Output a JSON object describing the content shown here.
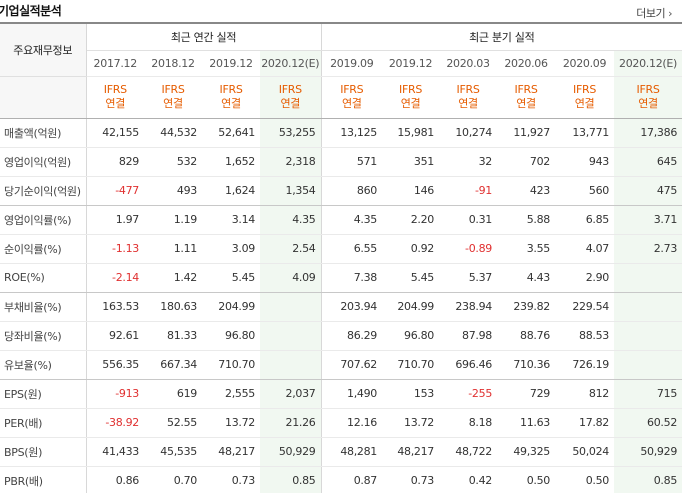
{
  "header": {
    "title": "기업실적분석",
    "more_label": "더보기"
  },
  "table": {
    "row_head": "주요재무정보",
    "annual_title": "최근 연간 실적",
    "quarter_title": "최근 분기 실적",
    "periods": [
      "2017.12",
      "2018.12",
      "2019.12",
      "2020.12(E)",
      "2019.09",
      "2019.12",
      "2020.03",
      "2020.06",
      "2020.09",
      "2020.12(E)"
    ],
    "std_line1": "IFRS",
    "std_line2": "연결",
    "rows": [
      {
        "label": "매출액(억원)",
        "values": [
          "42,155",
          "44,532",
          "52,641",
          "53,255",
          "13,125",
          "15,981",
          "10,274",
          "11,927",
          "13,771",
          "17,386"
        ]
      },
      {
        "label": "영업이익(억원)",
        "values": [
          "829",
          "532",
          "1,652",
          "2,318",
          "571",
          "351",
          "32",
          "702",
          "943",
          "645"
        ]
      },
      {
        "label": "당기순이익(억원)",
        "values": [
          "-477",
          "493",
          "1,624",
          "1,354",
          "860",
          "146",
          "-91",
          "423",
          "560",
          "475"
        ]
      },
      {
        "label": "영업이익률(%)",
        "values": [
          "1.97",
          "1.19",
          "3.14",
          "4.35",
          "4.35",
          "2.20",
          "0.31",
          "5.88",
          "6.85",
          "3.71"
        ]
      },
      {
        "label": "순이익률(%)",
        "values": [
          "-1.13",
          "1.11",
          "3.09",
          "2.54",
          "6.55",
          "0.92",
          "-0.89",
          "3.55",
          "4.07",
          "2.73"
        ]
      },
      {
        "label": "ROE(%)",
        "values": [
          "-2.14",
          "1.42",
          "5.45",
          "4.09",
          "7.38",
          "5.45",
          "5.37",
          "4.43",
          "2.90",
          ""
        ]
      },
      {
        "label": "부채비율(%)",
        "values": [
          "163.53",
          "180.63",
          "204.99",
          "",
          "203.94",
          "204.99",
          "238.94",
          "239.82",
          "229.54",
          ""
        ]
      },
      {
        "label": "당좌비율(%)",
        "values": [
          "92.61",
          "81.33",
          "96.80",
          "",
          "86.29",
          "96.80",
          "87.98",
          "88.76",
          "88.53",
          ""
        ]
      },
      {
        "label": "유보율(%)",
        "values": [
          "556.35",
          "667.34",
          "710.70",
          "",
          "707.62",
          "710.70",
          "696.46",
          "710.36",
          "726.19",
          ""
        ]
      },
      {
        "label": "EPS(원)",
        "values": [
          "-913",
          "619",
          "2,555",
          "2,037",
          "1,490",
          "153",
          "-255",
          "729",
          "812",
          "715"
        ]
      },
      {
        "label": "PER(배)",
        "values": [
          "-38.92",
          "52.55",
          "13.72",
          "21.26",
          "12.16",
          "13.72",
          "8.18",
          "11.63",
          "17.82",
          "60.52"
        ]
      },
      {
        "label": "BPS(원)",
        "values": [
          "41,433",
          "45,535",
          "48,217",
          "50,929",
          "48,281",
          "48,217",
          "48,722",
          "49,325",
          "50,024",
          "50,929"
        ]
      },
      {
        "label": "PBR(배)",
        "values": [
          "0.86",
          "0.70",
          "0.73",
          "0.85",
          "0.87",
          "0.73",
          "0.42",
          "0.50",
          "0.50",
          "0.85"
        ]
      }
    ]
  }
}
